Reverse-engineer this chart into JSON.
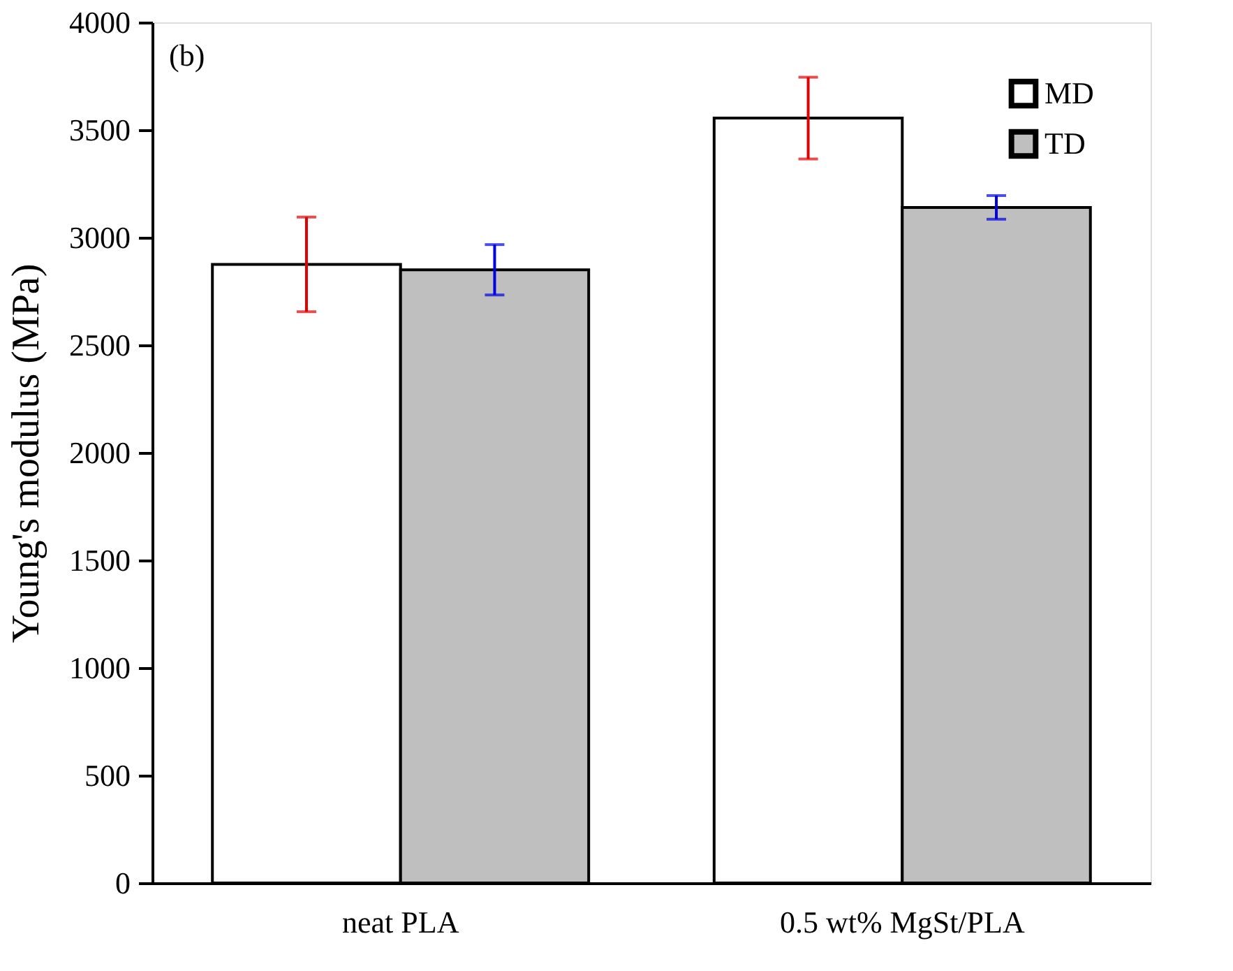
{
  "chart_data": {
    "type": "bar",
    "ylabel": "Young's modulus (MPa)",
    "categories": [
      "neat PLA",
      "0.5 wt% MgSt/PLA"
    ],
    "series": [
      {
        "name": "MD",
        "color": "#ffffff",
        "values": [
          2875,
          3555
        ],
        "errors": [
          220,
          190
        ]
      },
      {
        "name": "TD",
        "color": "#bfbfbf",
        "values": [
          2850,
          3140
        ],
        "errors": [
          117,
          55
        ]
      }
    ],
    "ylim": [
      0,
      4000
    ],
    "yticks": [
      0,
      500,
      1000,
      1500,
      2000,
      2500,
      3000,
      3500,
      4000
    ],
    "annotations": [
      "(b)"
    ],
    "grid": false,
    "legend": "top right"
  }
}
